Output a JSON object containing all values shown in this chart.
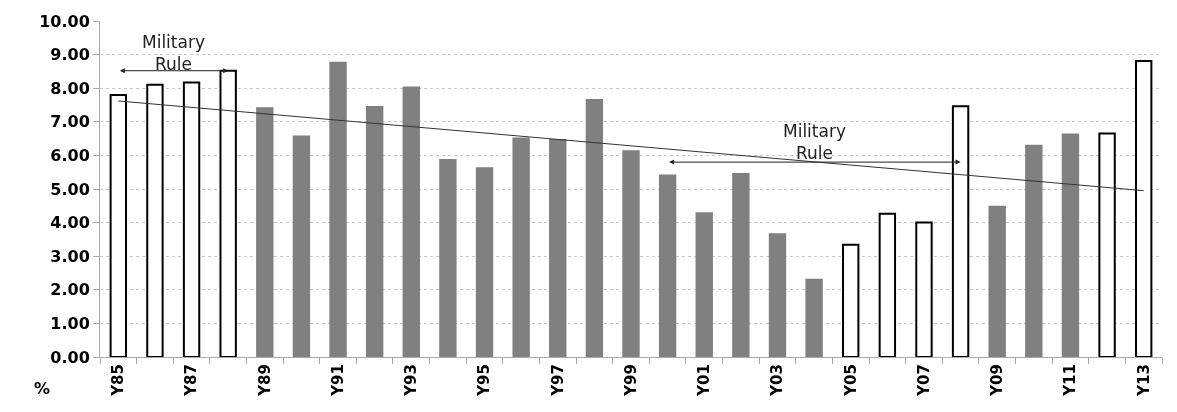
{
  "chart_data": {
    "type": "bar",
    "ylabel": "%",
    "categories": [
      "Y85",
      null,
      "Y87",
      null,
      "Y89",
      null,
      "Y91",
      null,
      "Y93",
      null,
      "Y95",
      null,
      "Y97",
      null,
      "Y99",
      null,
      "Y01",
      null,
      "Y03",
      null,
      "Y05",
      null,
      "Y07",
      null,
      "Y09",
      null,
      "Y11",
      null,
      "Y13"
    ],
    "series": [
      {
        "colors": [
          "#ffffff",
          "#ffffff",
          "#ffffff",
          "#ffffff",
          "#808080",
          "#808080",
          "#808080",
          "#808080",
          "#808080",
          "#808080",
          "#808080",
          "#808080",
          "#808080",
          "#808080",
          "#808080",
          "#808080",
          "#808080",
          "#808080",
          "#808080",
          "#808080",
          "#ffffff",
          "#ffffff",
          "#ffffff",
          "#ffffff",
          "#808080",
          "#808080",
          "#808080",
          "#ffffff",
          "#ffffff"
        ],
        "values": [
          7.8,
          8.1,
          8.17,
          8.52,
          7.4,
          6.56,
          8.76,
          7.44,
          8.02,
          5.86,
          5.62,
          6.5,
          6.46,
          7.65,
          6.12,
          5.4,
          4.28,
          5.45,
          3.65,
          2.3,
          3.34,
          4.26,
          4.0,
          7.46,
          4.47,
          6.29,
          6.62,
          6.65,
          8.81
        ]
      },
      {
        "type": "line",
        "color": "#333333",
        "values": [
          7.62,
          null,
          null,
          null,
          null,
          null,
          null,
          null,
          null,
          null,
          null,
          null,
          null,
          null,
          null,
          null,
          null,
          null,
          null,
          null,
          null,
          null,
          null,
          null,
          null,
          null,
          null,
          null,
          4.95
        ]
      }
    ],
    "annotations": [
      "Military\nRule",
      "Military\nRule"
    ],
    "ylim": [
      0,
      10
    ],
    "yticks": [
      {
        "value": 0,
        "label": "0.00"
      },
      {
        "value": 1,
        "label": "1.00"
      },
      {
        "value": 2,
        "label": "2.00"
      },
      {
        "value": 3,
        "label": "3.00"
      },
      {
        "value": 4,
        "label": "4.00"
      },
      {
        "value": 5,
        "label": "5.00"
      },
      {
        "value": 6,
        "label": "6.00"
      },
      {
        "value": 7,
        "label": "7.00"
      },
      {
        "value": 8,
        "label": "8.00"
      },
      {
        "value": 9,
        "label": "9.00"
      },
      {
        "value": 10,
        "label": "10.00"
      }
    ],
    "grid": "y"
  }
}
